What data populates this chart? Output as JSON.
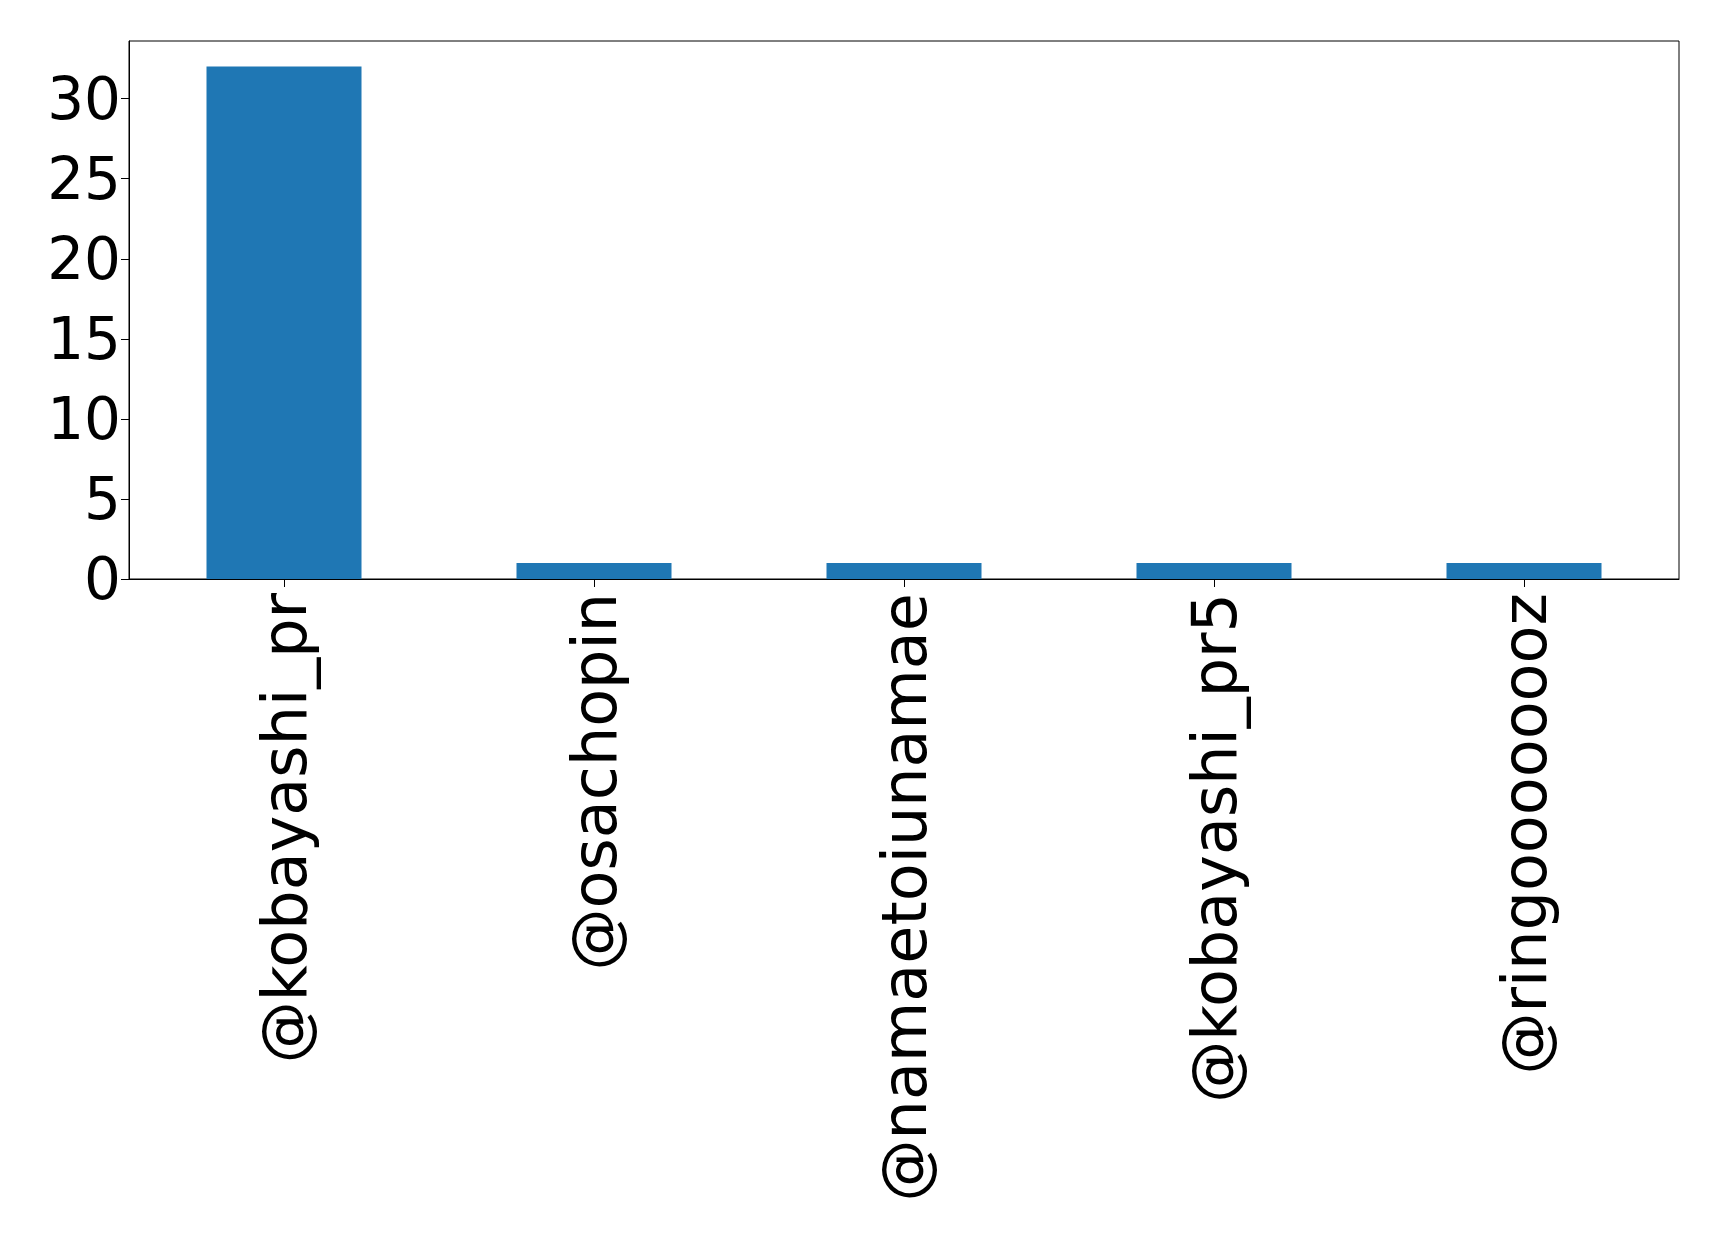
{
  "chart_data": {
    "type": "bar",
    "categories": [
      "@kobayashi_pr",
      "@osachopin",
      "@namaetoiunamae",
      "@kobayashi_pr5",
      "@ringoooooooz"
    ],
    "values": [
      32,
      1,
      1,
      1,
      1
    ],
    "color": "#1f77b4",
    "ylim": [
      0,
      33.6
    ],
    "yticks": [
      0,
      5,
      10,
      15,
      20,
      25,
      30
    ],
    "grid": false
  }
}
